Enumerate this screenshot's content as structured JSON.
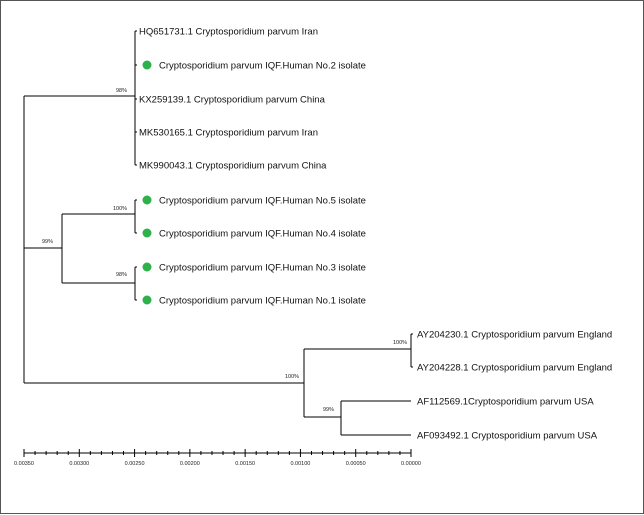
{
  "tree": {
    "taxa": [
      {
        "id": "t1",
        "label": "HQ651731.1 Cryptosporidium parvum Iran",
        "marker": false
      },
      {
        "id": "t2",
        "label": "Cryptosporidium parvum IQF.Human No.2 isolate",
        "marker": true
      },
      {
        "id": "t3",
        "label": "KX259139.1 Cryptosporidium parvum China",
        "marker": false
      },
      {
        "id": "t4",
        "label": "MK530165.1 Cryptosporidium parvum Iran",
        "marker": false
      },
      {
        "id": "t5",
        "label": "MK990043.1 Cryptosporidium parvum China",
        "marker": false
      },
      {
        "id": "t6",
        "label": "Cryptosporidium parvum IQF.Human No.5 isolate",
        "marker": true
      },
      {
        "id": "t7",
        "label": "Cryptosporidium parvum IQF.Human No.4 isolate",
        "marker": true
      },
      {
        "id": "t8",
        "label": "Cryptosporidium parvum IQF.Human No.3 isolate",
        "marker": true
      },
      {
        "id": "t9",
        "label": "Cryptosporidium parvum IQF.Human No.1 isolate",
        "marker": true
      },
      {
        "id": "t10",
        "label": "AY204230.1 Cryptosporidium parvum England",
        "marker": false
      },
      {
        "id": "t11",
        "label": "AY204228.1 Cryptosporidium parvum England",
        "marker": false
      },
      {
        "id": "t12",
        "label": "AF112569.1Cryptosporidium parvum USA",
        "marker": false
      },
      {
        "id": "t13",
        "label": "AF093492.1 Cryptosporidium parvum USA",
        "marker": false
      }
    ],
    "support_values": {
      "upper_clade": "98%",
      "no5_no4_clade": "100%",
      "no3_no1_clade": "98%",
      "iqf_clade": "99%",
      "outgroup_clade": "100%",
      "england_clade": "100%",
      "usa_clade": "99%"
    },
    "marker_color": "#2db14a"
  },
  "scale_axis": {
    "ticks": [
      "0.00350",
      "0.00300",
      "0.00250",
      "0.00200",
      "0.00150",
      "0.00100",
      "0.00050",
      "0.00000"
    ],
    "range": [
      0.0035,
      0.0
    ]
  }
}
